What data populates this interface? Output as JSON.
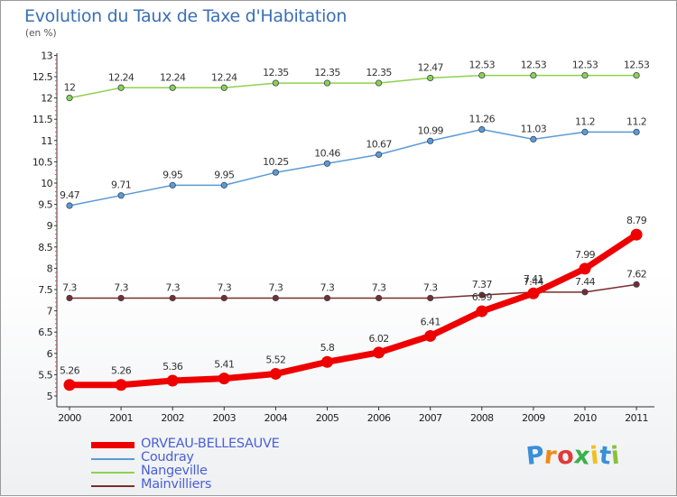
{
  "header": {
    "title": "Evolution du Taux de Taxe d'Habitation",
    "subtitle": "(en %)"
  },
  "logo": {
    "letters": [
      "P",
      "r",
      "o",
      "x",
      "i",
      "t",
      "i"
    ],
    "colors": [
      "#3a8fd8",
      "#f08a1c",
      "#e03a3a",
      "#3ab04a",
      "#f0c020",
      "#3a8fd8",
      "#8ac03a"
    ]
  },
  "chart_data": {
    "type": "line",
    "title": "Evolution du Taux de Taxe d'Habitation",
    "ylabel": "(en %)",
    "xlabel": "",
    "x": [
      "2000",
      "2001",
      "2002",
      "2003",
      "2004",
      "2005",
      "2006",
      "2007",
      "2008",
      "2009",
      "2010",
      "2011"
    ],
    "ylim": [
      5,
      13
    ],
    "yticks": [
      "5",
      "5.5",
      "6",
      "6.5",
      "7",
      "7.5",
      "8",
      "8.5",
      "9",
      "9.5",
      "10",
      "10.5",
      "11",
      "11.5",
      "12",
      "12.5",
      "13"
    ],
    "grid": false,
    "legend_position": "bottom-left",
    "series": [
      {
        "name": "ORVEAU-BELLESAUVE",
        "color": "#ee0000",
        "values": [
          5.26,
          5.26,
          5.36,
          5.41,
          5.52,
          5.8,
          6.02,
          6.41,
          6.99,
          7.41,
          7.99,
          8.79
        ],
        "labels": [
          "5.26",
          "5.26",
          "5.36",
          "5.41",
          "5.52",
          "5.8",
          "6.02",
          "6.41",
          "6.99",
          "7.41",
          "7.99",
          "8.79"
        ]
      },
      {
        "name": "Coudray",
        "color": "#5b9bd5",
        "values": [
          9.47,
          9.71,
          9.95,
          9.95,
          10.25,
          10.46,
          10.67,
          10.99,
          11.26,
          11.03,
          11.2,
          11.2
        ],
        "labels": [
          "9.47",
          "9.71",
          "9.95",
          "9.95",
          "10.25",
          "10.46",
          "10.67",
          "10.99",
          "11.26",
          "11.03",
          "11.2",
          "11.2"
        ]
      },
      {
        "name": "Nangeville",
        "color": "#8fd14f",
        "values": [
          12,
          12.24,
          12.24,
          12.24,
          12.35,
          12.35,
          12.35,
          12.47,
          12.53,
          12.53,
          12.53,
          12.53
        ],
        "labels": [
          "12",
          "12.24",
          "12.24",
          "12.24",
          "12.35",
          "12.35",
          "12.35",
          "12.47",
          "12.53",
          "12.53",
          "12.53",
          "12.53"
        ]
      },
      {
        "name": "Mainvilliers",
        "color": "#7b2c2c",
        "values": [
          7.3,
          7.3,
          7.3,
          7.3,
          7.3,
          7.3,
          7.3,
          7.3,
          7.37,
          7.44,
          7.44,
          7.62
        ],
        "labels": [
          "7.3",
          "7.3",
          "7.3",
          "7.3",
          "7.3",
          "7.3",
          "7.3",
          "7.3",
          "7.37",
          "7.44",
          "7.44",
          "7.62"
        ]
      }
    ]
  }
}
